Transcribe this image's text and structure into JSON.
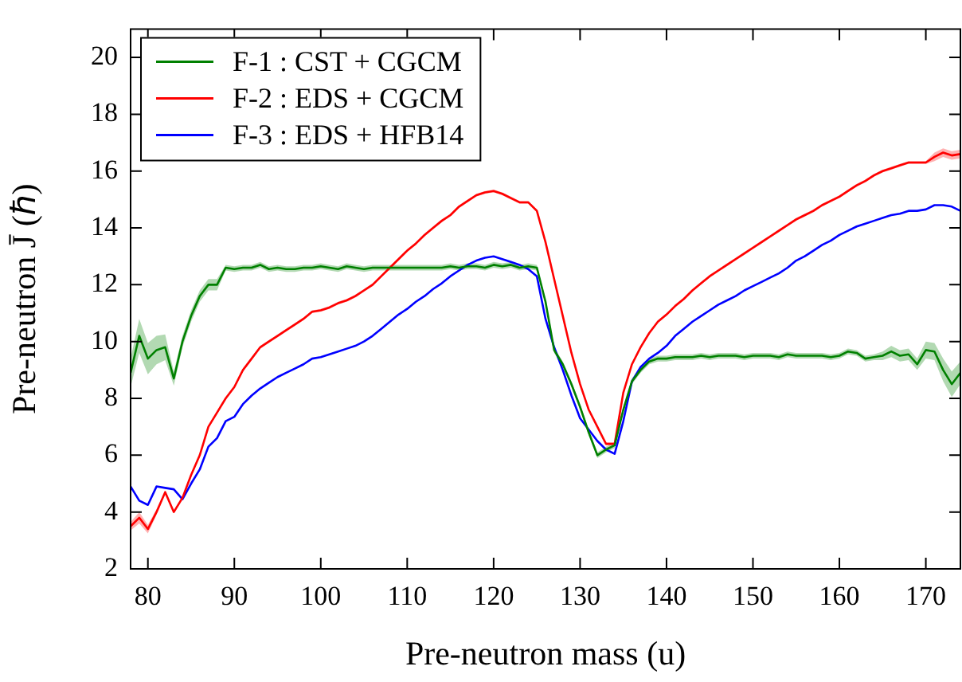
{
  "chart_data": {
    "type": "line",
    "xlabel": "Pre-neutron mass (u)",
    "ylabel": "Pre-neutron J̄ (ℏ)",
    "x": [
      78,
      79,
      80,
      81,
      82,
      83,
      84,
      85,
      86,
      87,
      88,
      89,
      90,
      91,
      92,
      93,
      94,
      95,
      96,
      97,
      98,
      99,
      100,
      101,
      102,
      103,
      104,
      105,
      106,
      107,
      108,
      109,
      110,
      111,
      112,
      113,
      114,
      115,
      116,
      117,
      118,
      119,
      120,
      121,
      122,
      123,
      124,
      125,
      126,
      127,
      128,
      129,
      130,
      131,
      132,
      133,
      134,
      135,
      136,
      137,
      138,
      139,
      140,
      141,
      142,
      143,
      144,
      145,
      146,
      147,
      148,
      149,
      150,
      151,
      152,
      153,
      154,
      155,
      156,
      157,
      158,
      159,
      160,
      161,
      162,
      163,
      164,
      165,
      166,
      167,
      168,
      169,
      170,
      171,
      172,
      173,
      174
    ],
    "xlim": [
      78,
      174
    ],
    "xticks": [
      80,
      90,
      100,
      110,
      120,
      130,
      140,
      150,
      160,
      170
    ],
    "ylim": [
      2,
      21
    ],
    "yticks": [
      2,
      4,
      6,
      8,
      10,
      12,
      14,
      16,
      18,
      20
    ],
    "legend": "top left",
    "marker": "none",
    "line_style": "solid",
    "series": [
      {
        "name": "F-1 : CST + CGCM",
        "color": "#008000",
        "values": [
          8.9,
          10.2,
          9.4,
          9.7,
          9.8,
          8.7,
          10.0,
          10.9,
          11.6,
          12.0,
          12.0,
          12.6,
          12.55,
          12.6,
          12.6,
          12.7,
          12.55,
          12.6,
          12.55,
          12.55,
          12.6,
          12.6,
          12.65,
          12.6,
          12.55,
          12.65,
          12.6,
          12.55,
          12.6,
          12.6,
          12.6,
          12.6,
          12.6,
          12.6,
          12.6,
          12.6,
          12.6,
          12.65,
          12.6,
          12.65,
          12.65,
          12.6,
          12.7,
          12.65,
          12.7,
          12.6,
          12.65,
          12.6,
          11.4,
          9.7,
          9.2,
          8.5,
          7.7,
          6.8,
          6.0,
          6.2,
          6.35,
          7.6,
          8.6,
          9.0,
          9.3,
          9.4,
          9.4,
          9.45,
          9.45,
          9.45,
          9.5,
          9.45,
          9.5,
          9.5,
          9.5,
          9.45,
          9.5,
          9.5,
          9.5,
          9.45,
          9.55,
          9.5,
          9.5,
          9.5,
          9.5,
          9.45,
          9.5,
          9.65,
          9.6,
          9.4,
          9.45,
          9.5,
          9.65,
          9.5,
          9.55,
          9.2,
          9.7,
          9.65,
          9.0,
          8.5,
          8.9
        ],
        "lower": [
          8.4,
          9.6,
          8.85,
          9.2,
          9.35,
          8.45,
          9.8,
          10.7,
          11.4,
          11.8,
          11.8,
          12.5,
          12.45,
          12.5,
          12.5,
          12.6,
          12.45,
          12.5,
          12.45,
          12.45,
          12.5,
          12.5,
          12.55,
          12.5,
          12.45,
          12.55,
          12.5,
          12.45,
          12.5,
          12.5,
          12.5,
          12.5,
          12.5,
          12.5,
          12.5,
          12.5,
          12.5,
          12.55,
          12.5,
          12.55,
          12.55,
          12.5,
          12.6,
          12.55,
          12.6,
          12.5,
          12.55,
          12.5,
          11.3,
          9.6,
          9.1,
          8.4,
          7.6,
          6.7,
          5.9,
          6.1,
          6.25,
          7.5,
          8.5,
          8.9,
          9.2,
          9.3,
          9.3,
          9.35,
          9.35,
          9.35,
          9.4,
          9.35,
          9.4,
          9.4,
          9.4,
          9.35,
          9.4,
          9.4,
          9.4,
          9.35,
          9.45,
          9.4,
          9.4,
          9.4,
          9.4,
          9.35,
          9.4,
          9.55,
          9.5,
          9.3,
          9.35,
          9.35,
          9.45,
          9.3,
          9.35,
          9.0,
          9.4,
          9.35,
          8.6,
          8.05,
          8.5
        ],
        "upper": [
          9.4,
          10.8,
          9.95,
          10.2,
          10.25,
          8.95,
          10.2,
          11.1,
          11.8,
          12.2,
          12.2,
          12.7,
          12.65,
          12.7,
          12.7,
          12.8,
          12.65,
          12.7,
          12.65,
          12.65,
          12.7,
          12.7,
          12.75,
          12.7,
          12.65,
          12.75,
          12.7,
          12.65,
          12.7,
          12.7,
          12.7,
          12.7,
          12.7,
          12.7,
          12.7,
          12.7,
          12.7,
          12.75,
          12.7,
          12.75,
          12.75,
          12.7,
          12.8,
          12.75,
          12.8,
          12.7,
          12.75,
          12.7,
          11.5,
          9.8,
          9.3,
          8.6,
          7.8,
          6.9,
          6.1,
          6.3,
          6.45,
          7.7,
          8.7,
          9.1,
          9.4,
          9.5,
          9.5,
          9.55,
          9.55,
          9.55,
          9.6,
          9.55,
          9.6,
          9.6,
          9.6,
          9.55,
          9.6,
          9.6,
          9.6,
          9.55,
          9.65,
          9.6,
          9.6,
          9.6,
          9.6,
          9.55,
          9.6,
          9.75,
          9.7,
          9.5,
          9.55,
          9.65,
          9.85,
          9.7,
          9.75,
          9.4,
          10.0,
          9.95,
          9.4,
          8.95,
          9.3
        ]
      },
      {
        "name": "F-2 : EDS + CGCM",
        "color": "#ff0000",
        "values": [
          3.5,
          3.8,
          3.4,
          4.0,
          4.7,
          4.0,
          4.5,
          5.3,
          6.0,
          7.0,
          7.5,
          8.0,
          8.4,
          9.0,
          9.4,
          9.8,
          10.0,
          10.2,
          10.4,
          10.6,
          10.8,
          11.05,
          11.1,
          11.2,
          11.35,
          11.45,
          11.6,
          11.8,
          12.0,
          12.3,
          12.6,
          12.9,
          13.2,
          13.45,
          13.75,
          14.0,
          14.25,
          14.45,
          14.75,
          14.95,
          15.15,
          15.25,
          15.3,
          15.2,
          15.05,
          14.9,
          14.9,
          14.6,
          13.5,
          12.2,
          10.9,
          9.6,
          8.5,
          7.6,
          7.0,
          6.4,
          6.4,
          8.2,
          9.2,
          9.8,
          10.3,
          10.7,
          10.95,
          11.25,
          11.5,
          11.8,
          12.05,
          12.3,
          12.5,
          12.7,
          12.9,
          13.1,
          13.3,
          13.5,
          13.7,
          13.9,
          14.1,
          14.3,
          14.45,
          14.6,
          14.8,
          14.95,
          15.1,
          15.3,
          15.5,
          15.65,
          15.85,
          16.0,
          16.1,
          16.2,
          16.3,
          16.3,
          16.3,
          16.5,
          16.65,
          16.55,
          16.6
        ],
        "lower": [
          3.35,
          3.6,
          3.25,
          3.9,
          4.65,
          3.95,
          4.45,
          5.25,
          5.95,
          6.95,
          7.45,
          7.95,
          8.35,
          8.95,
          9.35,
          9.75,
          9.95,
          10.15,
          10.35,
          10.55,
          10.75,
          11.0,
          11.05,
          11.15,
          11.3,
          11.4,
          11.55,
          11.75,
          11.95,
          12.25,
          12.55,
          12.85,
          13.15,
          13.4,
          13.7,
          13.95,
          14.2,
          14.4,
          14.7,
          14.9,
          15.1,
          15.2,
          15.25,
          15.15,
          15.0,
          14.85,
          14.85,
          14.55,
          13.45,
          12.15,
          10.85,
          9.55,
          8.45,
          7.55,
          6.95,
          6.35,
          6.35,
          8.15,
          9.15,
          9.75,
          10.25,
          10.65,
          10.9,
          11.2,
          11.45,
          11.75,
          12.0,
          12.25,
          12.45,
          12.65,
          12.85,
          13.05,
          13.25,
          13.45,
          13.65,
          13.85,
          14.05,
          14.25,
          14.4,
          14.55,
          14.75,
          14.9,
          15.05,
          15.25,
          15.45,
          15.6,
          15.8,
          15.95,
          16.05,
          16.15,
          16.25,
          16.25,
          16.25,
          16.35,
          16.5,
          16.4,
          16.45
        ],
        "upper": [
          3.65,
          4.0,
          3.55,
          4.1,
          4.75,
          4.05,
          4.55,
          5.35,
          6.05,
          7.05,
          7.55,
          8.05,
          8.45,
          9.05,
          9.45,
          9.85,
          10.05,
          10.25,
          10.45,
          10.65,
          10.85,
          11.1,
          11.15,
          11.25,
          11.4,
          11.5,
          11.65,
          11.85,
          12.05,
          12.35,
          12.65,
          12.95,
          13.25,
          13.5,
          13.8,
          14.05,
          14.3,
          14.5,
          14.8,
          15.0,
          15.2,
          15.3,
          15.35,
          15.25,
          15.1,
          14.95,
          14.95,
          14.65,
          13.55,
          12.25,
          10.95,
          9.65,
          8.55,
          7.65,
          7.05,
          6.45,
          6.45,
          8.25,
          9.25,
          9.85,
          10.35,
          10.75,
          11.0,
          11.3,
          11.55,
          11.85,
          12.1,
          12.35,
          12.55,
          12.75,
          12.95,
          13.15,
          13.35,
          13.55,
          13.75,
          13.95,
          14.15,
          14.35,
          14.5,
          14.65,
          14.85,
          15.0,
          15.15,
          15.35,
          15.55,
          15.7,
          15.9,
          16.05,
          16.15,
          16.25,
          16.35,
          16.35,
          16.35,
          16.65,
          16.8,
          16.7,
          16.75
        ]
      },
      {
        "name": "F-3 : EDS + HFB14",
        "color": "#0000ff",
        "values": [
          4.9,
          4.4,
          4.25,
          4.9,
          4.85,
          4.8,
          4.45,
          5.0,
          5.5,
          6.3,
          6.6,
          7.2,
          7.35,
          7.8,
          8.1,
          8.35,
          8.55,
          8.75,
          8.9,
          9.05,
          9.2,
          9.4,
          9.45,
          9.55,
          9.65,
          9.75,
          9.85,
          10.0,
          10.2,
          10.45,
          10.7,
          10.95,
          11.15,
          11.4,
          11.6,
          11.85,
          12.05,
          12.3,
          12.5,
          12.7,
          12.85,
          12.95,
          13.0,
          12.9,
          12.8,
          12.7,
          12.55,
          12.3,
          10.8,
          9.8,
          9.0,
          8.1,
          7.3,
          6.9,
          6.5,
          6.2,
          6.05,
          7.2,
          8.6,
          9.1,
          9.4,
          9.6,
          9.85,
          10.2,
          10.45,
          10.7,
          10.9,
          11.1,
          11.3,
          11.45,
          11.6,
          11.8,
          11.95,
          12.1,
          12.25,
          12.4,
          12.6,
          12.85,
          13.0,
          13.2,
          13.4,
          13.55,
          13.75,
          13.9,
          14.05,
          14.15,
          14.25,
          14.35,
          14.45,
          14.5,
          14.6,
          14.6,
          14.65,
          14.8,
          14.8,
          14.75,
          14.6
        ]
      }
    ]
  }
}
